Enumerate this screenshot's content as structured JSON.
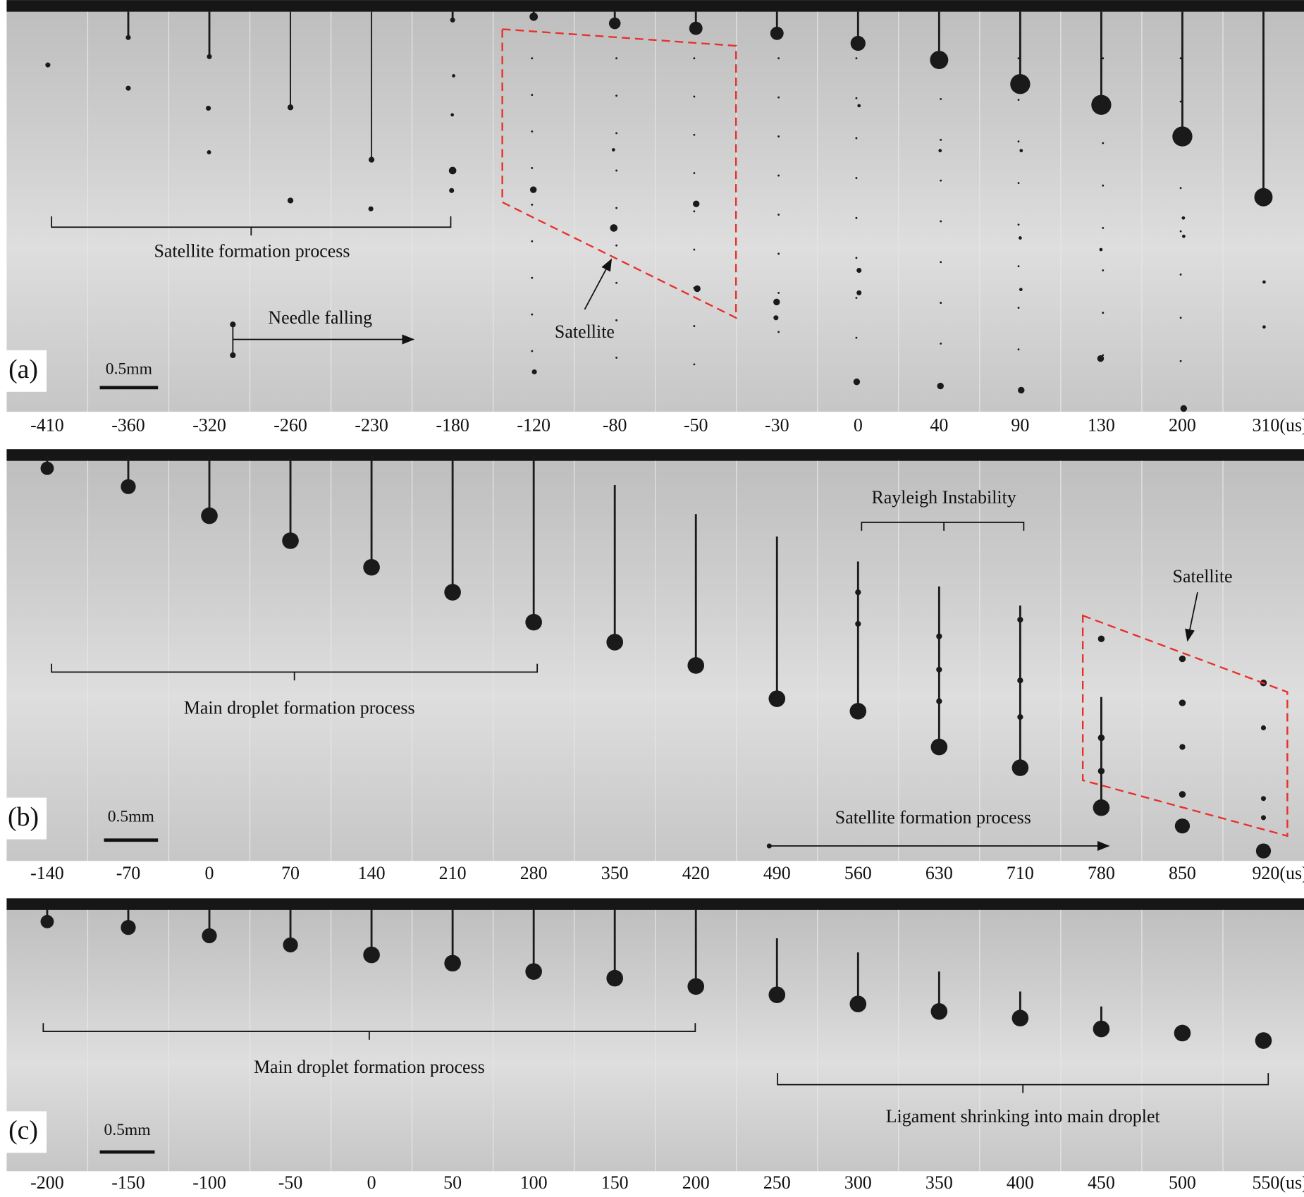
{
  "panels": [
    {
      "label": "(a)",
      "scale_bar": "0.5mm",
      "times": [
        "-410",
        "-360",
        "-320",
        "-260",
        "-230",
        "-180",
        "-120",
        "-80",
        "-50",
        "-30",
        "0",
        "40",
        "90",
        "130",
        "200",
        "310(us)"
      ],
      "annotations": [
        "Satellite formation process",
        "Needle falling",
        "Satellite"
      ]
    },
    {
      "label": "(b)",
      "scale_bar": "0.5mm",
      "times": [
        "-140",
        "-70",
        "0",
        "70",
        "140",
        "210",
        "280",
        "350",
        "420",
        "490",
        "560",
        "630",
        "710",
        "780",
        "850",
        "920(us)"
      ],
      "annotations": [
        "Rayleigh Instability",
        "Satellite",
        "Main droplet formation process",
        "Satellite formation process"
      ]
    },
    {
      "label": "(c)",
      "scale_bar": "0.5mm",
      "times": [
        "-200",
        "-150",
        "-100",
        "-50",
        "0",
        "50",
        "100",
        "150",
        "200",
        "250",
        "300",
        "350",
        "400",
        "450",
        "500",
        "550(us)"
      ],
      "annotations": [
        "Main droplet formation process",
        "Ligament shrinking into main droplet"
      ]
    }
  ]
}
